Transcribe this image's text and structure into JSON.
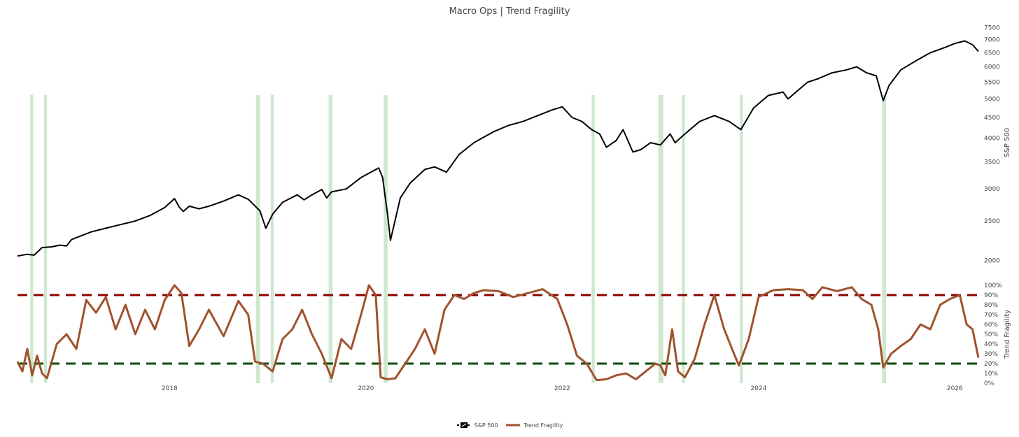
{
  "chart_data": {
    "type": "line",
    "title": "Macro Ops | Trend Fragility",
    "x_ticks": [
      "2018",
      "2020",
      "2022",
      "2024",
      "2026"
    ],
    "x_range": [
      2016.45,
      2026.24
    ],
    "grid": false,
    "legend_position": "bottom-center",
    "top_axis": {
      "label": "S&P 500",
      "scale": "log",
      "range": [
        1850,
        7600
      ],
      "ticks": [
        "2000",
        "2500",
        "3000",
        "3500",
        "4000",
        "4500",
        "5000",
        "5500",
        "6000",
        "6500",
        "7000",
        "7500"
      ]
    },
    "bottom_axis": {
      "label": "Trend Fragility",
      "range": [
        0,
        100
      ],
      "ticks": [
        "0%",
        "10%",
        "20%",
        "30%",
        "40%",
        "50%",
        "60%",
        "70%",
        "80%",
        "90%",
        "100%"
      ]
    },
    "series": [
      {
        "name": "S&P 500",
        "color": "#000000",
        "axis": "top",
        "x": [
          2016.45,
          2016.55,
          2016.62,
          2016.7,
          2016.8,
          2016.88,
          2016.95,
          2017.0,
          2017.1,
          2017.2,
          2017.35,
          2017.5,
          2017.65,
          2017.8,
          2017.95,
          2018.05,
          2018.1,
          2018.14,
          2018.2,
          2018.3,
          2018.4,
          2018.55,
          2018.7,
          2018.8,
          2018.92,
          2018.98,
          2019.05,
          2019.15,
          2019.3,
          2019.37,
          2019.45,
          2019.55,
          2019.6,
          2019.65,
          2019.8,
          2019.95,
          2020.05,
          2020.13,
          2020.17,
          2020.22,
          2020.25,
          2020.35,
          2020.45,
          2020.6,
          2020.7,
          2020.82,
          2020.95,
          2021.1,
          2021.3,
          2021.45,
          2021.6,
          2021.75,
          2021.9,
          2022.0,
          2022.1,
          2022.2,
          2022.3,
          2022.38,
          2022.45,
          2022.55,
          2022.62,
          2022.72,
          2022.8,
          2022.9,
          2023.0,
          2023.1,
          2023.15,
          2023.25,
          2023.4,
          2023.55,
          2023.7,
          2023.82,
          2023.95,
          2024.1,
          2024.25,
          2024.3,
          2024.5,
          2024.6,
          2024.75,
          2024.9,
          2025.0,
          2025.1,
          2025.2,
          2025.27,
          2025.33,
          2025.45,
          2025.6,
          2025.75,
          2025.9,
          2026.0,
          2026.1,
          2026.18,
          2026.24
        ],
        "values": [
          2050,
          2070,
          2060,
          2150,
          2160,
          2180,
          2170,
          2250,
          2300,
          2350,
          2400,
          2450,
          2500,
          2580,
          2700,
          2840,
          2700,
          2640,
          2720,
          2680,
          2720,
          2800,
          2900,
          2830,
          2650,
          2400,
          2600,
          2780,
          2900,
          2820,
          2900,
          2990,
          2850,
          2950,
          3000,
          3200,
          3300,
          3380,
          3200,
          2600,
          2240,
          2850,
          3100,
          3350,
          3400,
          3300,
          3650,
          3900,
          4150,
          4300,
          4400,
          4550,
          4700,
          4780,
          4500,
          4400,
          4200,
          4100,
          3800,
          3950,
          4200,
          3700,
          3750,
          3900,
          3850,
          4100,
          3900,
          4100,
          4400,
          4550,
          4400,
          4200,
          4750,
          5100,
          5200,
          5000,
          5500,
          5600,
          5800,
          5900,
          6000,
          5800,
          5700,
          4950,
          5400,
          5900,
          6200,
          6500,
          6700,
          6850,
          6950,
          6800,
          6550
        ]
      },
      {
        "name": "Trend Fragility",
        "color": "#a0522d",
        "axis": "bottom",
        "x": [
          2016.45,
          2016.5,
          2016.55,
          2016.6,
          2016.65,
          2016.7,
          2016.75,
          2016.85,
          2016.95,
          2017.05,
          2017.1,
          2017.15,
          2017.25,
          2017.35,
          2017.45,
          2017.55,
          2017.65,
          2017.75,
          2017.85,
          2017.95,
          2018.05,
          2018.12,
          2018.2,
          2018.3,
          2018.4,
          2018.55,
          2018.7,
          2018.8,
          2018.87,
          2018.95,
          2019.05,
          2019.15,
          2019.25,
          2019.35,
          2019.45,
          2019.55,
          2019.65,
          2019.75,
          2019.85,
          2019.95,
          2020.03,
          2020.1,
          2020.15,
          2020.22,
          2020.3,
          2020.4,
          2020.5,
          2020.6,
          2020.7,
          2020.8,
          2020.9,
          2021.0,
          2021.1,
          2021.2,
          2021.35,
          2021.5,
          2021.65,
          2021.8,
          2021.95,
          2022.05,
          2022.15,
          2022.25,
          2022.35,
          2022.45,
          2022.55,
          2022.65,
          2022.75,
          2022.85,
          2022.95,
          2023.0,
          2023.05,
          2023.12,
          2023.18,
          2023.25,
          2023.35,
          2023.45,
          2023.55,
          2023.65,
          2023.75,
          2023.8,
          2023.9,
          2024.0,
          2024.15,
          2024.3,
          2024.45,
          2024.55,
          2024.65,
          2024.8,
          2024.95,
          2025.05,
          2025.15,
          2025.22,
          2025.27,
          2025.35,
          2025.45,
          2025.55,
          2025.65,
          2025.75,
          2025.85,
          2025.95,
          2026.05,
          2026.12,
          2026.18,
          2026.24
        ],
        "values": [
          22,
          12,
          35,
          8,
          28,
          10,
          5,
          40,
          50,
          35,
          60,
          85,
          72,
          88,
          55,
          80,
          50,
          75,
          55,
          85,
          100,
          92,
          38,
          55,
          75,
          48,
          84,
          70,
          22,
          20,
          12,
          45,
          55,
          75,
          50,
          30,
          5,
          45,
          35,
          70,
          100,
          90,
          6,
          4,
          5,
          20,
          35,
          55,
          30,
          75,
          90,
          86,
          92,
          95,
          94,
          88,
          92,
          96,
          86,
          60,
          28,
          20,
          3,
          4,
          8,
          10,
          4,
          12,
          20,
          18,
          8,
          55,
          12,
          6,
          25,
          60,
          90,
          55,
          30,
          18,
          45,
          88,
          95,
          96,
          95,
          86,
          98,
          94,
          98,
          86,
          80,
          55,
          16,
          30,
          38,
          45,
          60,
          55,
          80,
          86,
          90,
          60,
          55,
          26
        ],
        "reference_lines": [
          {
            "value": 90,
            "color": "#8b0000",
            "style": "dashed"
          },
          {
            "value": 20,
            "color": "#0a4d0a",
            "style": "dashed"
          }
        ]
      }
    ],
    "highlight_bands": {
      "color": "#c8e6c9",
      "ranges": [
        [
          2016.58,
          2016.61
        ],
        [
          2016.72,
          2016.75
        ],
        [
          2018.88,
          2018.92
        ],
        [
          2019.03,
          2019.06
        ],
        [
          2019.62,
          2019.66
        ],
        [
          2020.18,
          2020.22
        ],
        [
          2022.3,
          2022.33
        ],
        [
          2022.98,
          2023.03
        ],
        [
          2023.22,
          2023.25
        ],
        [
          2023.81,
          2023.84
        ],
        [
          2025.26,
          2025.3
        ]
      ]
    }
  }
}
